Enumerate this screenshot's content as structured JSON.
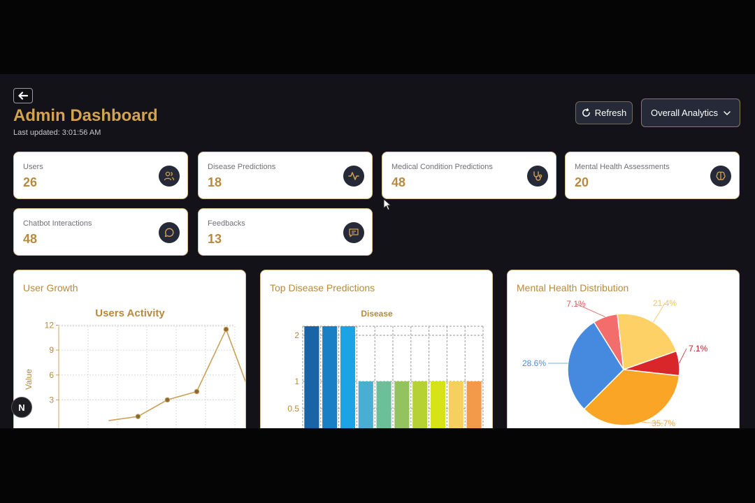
{
  "header": {
    "title": "Admin Dashboard",
    "last_updated": "Last updated: 3:01:56 AM",
    "refresh_label": "Refresh",
    "analytics_select": "Overall Analytics"
  },
  "stats": [
    {
      "label": "Users",
      "value": "26",
      "icon": "users-icon"
    },
    {
      "label": "Disease Predictions",
      "value": "18",
      "icon": "activity-icon"
    },
    {
      "label": "Medical Condition Predictions",
      "value": "48",
      "icon": "stethoscope-icon"
    },
    {
      "label": "Mental Health Assessments",
      "value": "20",
      "icon": "brain-icon"
    },
    {
      "label": "Chatbot Interactions",
      "value": "48",
      "icon": "message-circle-icon"
    },
    {
      "label": "Feedbacks",
      "value": "13",
      "icon": "message-square-icon"
    }
  ],
  "panels": {
    "user_growth": "User Growth",
    "top_disease": "Top Disease Predictions",
    "mental_health": "Mental Health Distribution"
  },
  "badge": "N",
  "chart_data": [
    {
      "type": "line",
      "title": "Users Activity",
      "ylabel": "Value",
      "y_ticks": [
        "3",
        "6",
        "9",
        "12"
      ],
      "ylim": [
        0,
        13
      ],
      "x": [
        0,
        1,
        2,
        3,
        4,
        5
      ],
      "values": [
        0.5,
        1,
        3,
        4,
        11.5,
        2
      ],
      "color": "#c9a15a"
    },
    {
      "type": "bar",
      "title": "Disease",
      "y_ticks": [
        "0.5",
        "1",
        "2"
      ],
      "values": [
        2.1,
        2.1,
        2.1,
        1,
        1,
        1,
        1,
        1,
        1,
        1
      ],
      "colors": [
        "#1864a6",
        "#1a7fc4",
        "#1ca3e6",
        "#4aaed0",
        "#6cbf98",
        "#93c35e",
        "#b6d133",
        "#d6e316",
        "#f7cf5c",
        "#f39a4a"
      ]
    },
    {
      "type": "pie",
      "slices": [
        {
          "label": "7.1%",
          "value": 7.1,
          "color": "#f46d6d",
          "label_color": "#e05a5a"
        },
        {
          "label": "21.4%",
          "value": 21.4,
          "color": "#fdd165",
          "label_color": "#f2c460"
        },
        {
          "label": "7.1%",
          "value": 7.1,
          "color": "#d8262a",
          "label_color": "#c0242a"
        },
        {
          "label": "35.7%",
          "value": 35.7,
          "color": "#fba526",
          "label_color": "#f2a84a"
        },
        {
          "label": "28.6%",
          "value": 28.6,
          "color": "#468ae0",
          "label_color": "#4a8ed4"
        }
      ]
    }
  ]
}
